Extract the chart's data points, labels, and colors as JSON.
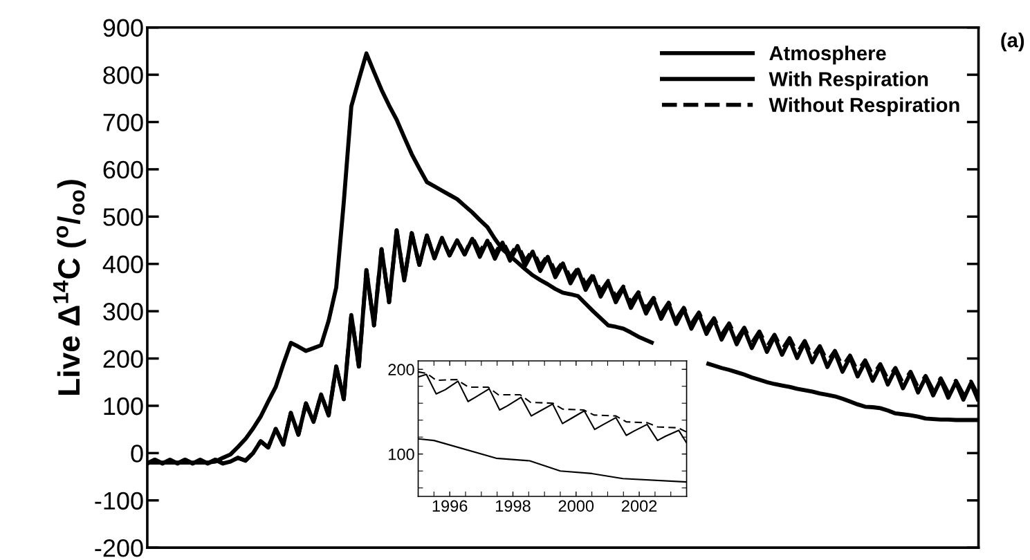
{
  "chart_data": [
    {
      "type": "line",
      "ylabel": "Live Δ$^{14}$C ($^{o}$/$_{oo}$)",
      "annotations": [
        "(a)"
      ],
      "legend": "top right",
      "grid": false,
      "categories": [
        null,
        null,
        null,
        null,
        null,
        null,
        null,
        null,
        null,
        null,
        null,
        null,
        null,
        null,
        null,
        null,
        null,
        null,
        null,
        null,
        null,
        null,
        null,
        null,
        null,
        null,
        null,
        null,
        null,
        null,
        null,
        null,
        null,
        null,
        null,
        null,
        null,
        null,
        null,
        null,
        null,
        null,
        null,
        null,
        null,
        null,
        null,
        null,
        null,
        null,
        null,
        null,
        null,
        null,
        null,
        null,
        null,
        null,
        null,
        null,
        null,
        null,
        null,
        null,
        null,
        null,
        null,
        null,
        null,
        null,
        null,
        null,
        null,
        null,
        null,
        null,
        null,
        null,
        null,
        null,
        null,
        null,
        null,
        null,
        null,
        null,
        null,
        null,
        null,
        null,
        null,
        null,
        null,
        null,
        null,
        null,
        null,
        null,
        null,
        null,
        null,
        null,
        null,
        null,
        null,
        null,
        null,
        null,
        null,
        null,
        null
      ],
      "ylim": [
        -200,
        900
      ],
      "yticks": [
        -200,
        -100,
        0,
        100,
        200,
        300,
        400,
        500,
        600,
        700,
        800,
        900
      ],
      "series": [
        {
          "name": "Atmosphere",
          "color": "#000000",
          "line_style": "solid",
          "values": [
            -20,
            -20,
            -20,
            -20,
            -20,
            -20,
            -20,
            -20,
            -20,
            -18,
            -10,
            -3,
            13,
            30,
            52,
            77,
            109,
            140,
            188,
            233,
            225,
            216,
            222,
            228,
            280,
            350,
            530,
            733,
            790,
            845,
            806,
            768,
            735,
            705,
            668,
            632,
            602,
            573,
            564,
            555,
            546,
            537,
            523,
            509,
            493,
            478,
            453,
            431,
            417,
            403,
            389,
            376,
            366,
            357,
            347,
            339,
            336,
            332,
            316,
            300,
            285,
            270,
            267,
            263,
            255,
            246,
            239,
            232,
            null,
            null,
            null,
            null,
            null,
            null,
            190,
            185,
            180,
            176,
            171,
            166,
            160,
            155,
            150,
            146,
            143,
            140,
            136,
            133,
            130,
            126,
            123,
            120,
            115,
            109,
            103,
            98,
            97,
            95,
            90,
            84,
            82,
            80,
            77,
            73,
            72,
            71,
            71,
            70,
            70,
            70,
            70
          ]
        },
        {
          "name": "With Respiration",
          "color": "#000000",
          "line_style": "solid",
          "values": [
            -22,
            -14,
            -22,
            -14,
            -22,
            -14,
            -22,
            -14,
            -22,
            -14,
            -22,
            -18,
            -10,
            -16,
            0,
            25,
            12,
            51,
            18,
            85,
            39,
            105,
            66,
            124,
            80,
            183,
            114,
            292,
            183,
            387,
            270,
            431,
            319,
            471,
            365,
            465,
            398,
            460,
            412,
            455,
            418,
            450,
            420,
            453,
            415,
            449,
            411,
            445,
            407,
            438,
            396,
            426,
            385,
            415,
            372,
            401,
            359,
            388,
            345,
            374,
            331,
            361,
            319,
            349,
            307,
            337,
            295,
            325,
            284,
            315,
            273,
            304,
            263,
            294,
            252,
            282,
            240,
            271,
            230,
            262,
            222,
            254,
            214,
            247,
            208,
            240,
            201,
            234,
            192,
            223,
            182,
            213,
            172,
            203,
            162,
            193,
            153,
            185,
            145,
            177,
            137,
            169,
            128,
            160,
            122,
            155,
            117,
            150,
            113,
            148,
            110
          ]
        },
        {
          "name": "Without Respiration",
          "color": "#000000",
          "line_style": "dashed",
          "values": [
            -22,
            -14,
            -22,
            -14,
            -22,
            -14,
            -22,
            -14,
            -22,
            -14,
            -22,
            -18,
            -10,
            -16,
            0,
            25,
            12,
            51,
            18,
            85,
            39,
            105,
            66,
            124,
            80,
            183,
            114,
            292,
            183,
            387,
            270,
            431,
            319,
            471,
            365,
            465,
            398,
            460,
            412,
            455,
            418,
            450,
            420,
            456,
            425,
            452,
            421,
            448,
            417,
            441,
            406,
            429,
            395,
            418,
            382,
            404,
            369,
            391,
            355,
            377,
            341,
            364,
            329,
            352,
            317,
            340,
            305,
            328,
            294,
            318,
            283,
            307,
            273,
            297,
            262,
            285,
            250,
            274,
            240,
            265,
            232,
            257,
            224,
            250,
            218,
            243,
            211,
            237,
            202,
            226,
            192,
            216,
            182,
            206,
            172,
            196,
            163,
            188,
            155,
            180,
            147,
            172,
            138,
            163,
            132,
            158,
            127,
            153,
            123,
            151,
            120
          ]
        }
      ]
    },
    {
      "type": "line",
      "grid": false,
      "xlim": [
        1995,
        2003.5
      ],
      "ylim": [
        50,
        210
      ],
      "xticks": [
        {
          "value": 1995.5,
          "label": null
        },
        1996,
        {
          "value": 1996.5,
          "label": null
        },
        {
          "value": 1997,
          "label": null
        },
        {
          "value": 1997.5,
          "label": null
        },
        1998,
        {
          "value": 1998.5,
          "label": null
        },
        {
          "value": 1999,
          "label": null
        },
        {
          "value": 1999.5,
          "label": null
        },
        2000,
        {
          "value": 2000.5,
          "label": null
        },
        {
          "value": 2001,
          "label": null
        },
        {
          "value": 2001.5,
          "label": null
        },
        2002,
        {
          "value": 2002.5,
          "label": null
        },
        {
          "value": 2003,
          "label": null
        }
      ],
      "yticks": [
        {
          "value": 60,
          "label": null
        },
        {
          "value": 80,
          "label": null
        },
        100,
        {
          "value": 120,
          "label": null
        },
        {
          "value": 140,
          "label": null
        },
        {
          "value": 160,
          "label": null
        },
        {
          "value": 180,
          "label": null
        },
        200
      ],
      "series": [
        {
          "color": "#000000",
          "line_style": "solid",
          "x": [
            1995.0,
            1995.5,
            1997.47,
            1998.53,
            1999.5,
            2000.5,
            2001.48,
            2003.5
          ],
          "values": [
            118,
            116,
            95,
            92,
            80,
            77,
            71,
            67
          ]
        },
        {
          "color": "#000000",
          "line_style": "solid",
          "x": [
            1995.0,
            1995.26,
            1995.57,
            1995.86,
            1996.26,
            1996.58,
            1996.81,
            1997.25,
            1997.58,
            1997.83,
            1998.26,
            1998.58,
            1998.82,
            1999.26,
            1999.57,
            1999.8,
            2000.26,
            2000.59,
            2000.82,
            2001.26,
            2001.59,
            2001.83,
            2002.25,
            2002.58,
            2002.83,
            2003.25,
            2003.5
          ],
          "values": [
            191,
            194,
            171,
            176,
            186,
            162,
            167,
            177,
            152,
            157,
            167,
            145,
            150,
            159,
            136,
            141,
            151,
            129,
            134,
            143,
            122,
            127,
            135,
            116,
            121,
            128,
            113
          ]
        },
        {
          "color": "#000000",
          "line_style": "dashed",
          "x": [
            1995.0,
            1995.28,
            1995.57,
            1996.22,
            1996.59,
            1997.21,
            1997.54,
            1998.23,
            1998.56,
            1999.26,
            1999.58,
            2000.24,
            2000.57,
            2001.26,
            2001.59,
            2002.25,
            2002.58,
            2003.23,
            2003.5
          ],
          "values": [
            197,
            195,
            187,
            188,
            179,
            179,
            170,
            170,
            161,
            160,
            153,
            152,
            146,
            145,
            138,
            137,
            132,
            131,
            126
          ]
        }
      ]
    }
  ]
}
